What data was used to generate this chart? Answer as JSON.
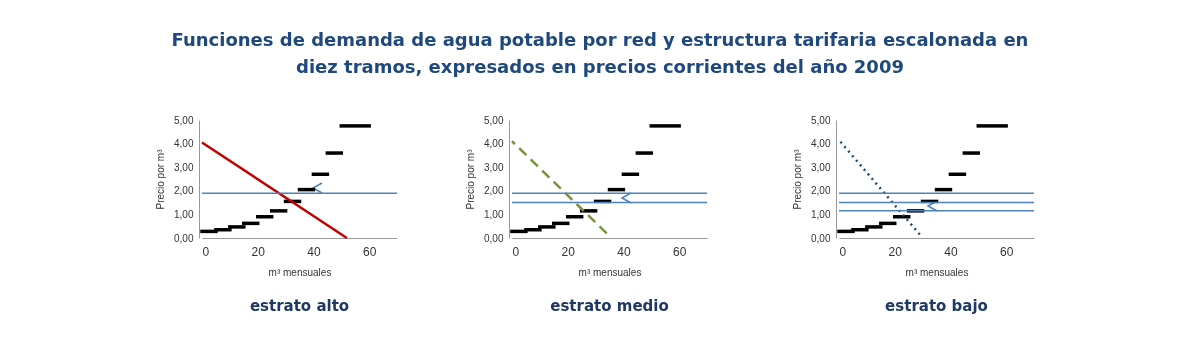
{
  "chart_data": [
    {
      "type": "line",
      "title": "estrato alto",
      "xlabel": "m³ mensuales",
      "ylabel": "Precio por m³",
      "annotations": [
        "Funciones de demanda de agua potable por red y estructura tarifaria escalonada en diez tramos, expresados en precios corrientes del año 2009"
      ],
      "xlim": [
        0,
        70
      ],
      "xticks": [
        0,
        20,
        40,
        60
      ],
      "ylim": [
        0,
        5
      ],
      "yticks": [
        {
          "value": 0,
          "label": "0,00"
        },
        {
          "value": 1,
          "label": "1,00"
        },
        {
          "value": 2,
          "label": "2,00"
        },
        {
          "value": 3,
          "label": "3,00"
        },
        {
          "value": 4,
          "label": "4,00"
        },
        {
          "value": 5,
          "label": "5,00"
        }
      ],
      "series": [
        {
          "type": "step",
          "color": "#000000",
          "x": [
            0,
            5,
            10,
            15,
            20,
            25,
            30,
            35,
            40,
            45,
            50,
            60
          ],
          "values": [
            0.28,
            0.35,
            0.47,
            0.62,
            0.9,
            1.15,
            1.55,
            2.05,
            2.7,
            3.6,
            4.75,
            4.75
          ]
        },
        {
          "color": "#c00000",
          "line_style": "solid",
          "x": [
            0,
            52
          ],
          "values": [
            4.05,
            0
          ]
        }
      ],
      "ref_lines": [
        {
          "axis": "y",
          "value": 1.9,
          "color": "#4f81bd"
        }
      ]
    },
    {
      "type": "line",
      "title": "estrato medio",
      "xlabel": "m³ mensuales",
      "ylabel": "Precio por m³",
      "xlim": [
        0,
        70
      ],
      "xticks": [
        0,
        20,
        40,
        60
      ],
      "ylim": [
        0,
        5
      ],
      "yticks": [
        {
          "value": 0,
          "label": "0,00"
        },
        {
          "value": 1,
          "label": "1,00"
        },
        {
          "value": 2,
          "label": "2,00"
        },
        {
          "value": 3,
          "label": "3,00"
        },
        {
          "value": 4,
          "label": "4,00"
        },
        {
          "value": 5,
          "label": "5,00"
        }
      ],
      "series": [
        {
          "type": "step",
          "color": "#000000",
          "x": [
            0,
            5,
            10,
            15,
            20,
            25,
            30,
            35,
            40,
            45,
            50,
            60
          ],
          "values": [
            0.28,
            0.35,
            0.47,
            0.62,
            0.9,
            1.15,
            1.55,
            2.05,
            2.7,
            3.6,
            4.75,
            4.75
          ]
        },
        {
          "color": "#77933c",
          "line_style": "dashed",
          "x": [
            0,
            34
          ],
          "values": [
            4.1,
            0.2
          ]
        }
      ],
      "ref_lines": [
        {
          "axis": "y",
          "value": 1.9,
          "color": "#4f81bd"
        },
        {
          "axis": "y",
          "value": 1.5,
          "color": "#4f81bd"
        }
      ]
    },
    {
      "type": "line",
      "title": "estrato bajo",
      "xlabel": "m³ mensuales",
      "ylabel": "Precio por m³",
      "xlim": [
        0,
        70
      ],
      "xticks": [
        0,
        20,
        40,
        60
      ],
      "ylim": [
        0,
        5
      ],
      "yticks": [
        {
          "value": 0,
          "label": "0,00"
        },
        {
          "value": 1,
          "label": "1,00"
        },
        {
          "value": 2,
          "label": "2,00"
        },
        {
          "value": 3,
          "label": "3,00"
        },
        {
          "value": 4,
          "label": "4,00"
        },
        {
          "value": 5,
          "label": "5,00"
        }
      ],
      "series": [
        {
          "type": "step",
          "color": "#000000",
          "x": [
            0,
            5,
            10,
            15,
            20,
            25,
            30,
            35,
            40,
            45,
            50,
            60
          ],
          "values": [
            0.28,
            0.35,
            0.47,
            0.62,
            0.9,
            1.15,
            1.55,
            2.05,
            2.7,
            3.6,
            4.75,
            4.75
          ]
        },
        {
          "color": "#1f497d",
          "line_style": "dotted",
          "x": [
            0,
            29
          ],
          "values": [
            4.15,
            0.15
          ]
        }
      ],
      "ref_lines": [
        {
          "axis": "y",
          "value": 1.9,
          "color": "#4f81bd"
        },
        {
          "axis": "y",
          "value": 1.5,
          "color": "#4f81bd"
        },
        {
          "axis": "y",
          "value": 1.15,
          "color": "#4f81bd"
        }
      ]
    }
  ]
}
